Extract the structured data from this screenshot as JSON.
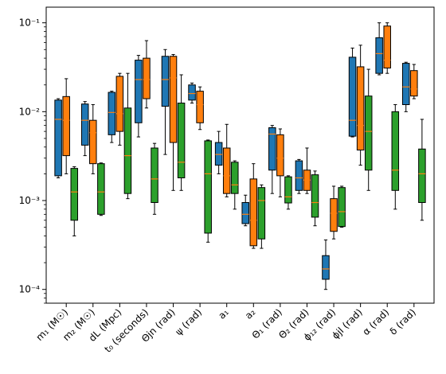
{
  "chart_data": {
    "type": "box",
    "title": "",
    "xlabel": "",
    "ylabel": "",
    "yscale": "log",
    "ylim": [
      7e-05,
      0.15
    ],
    "yticks": [
      {
        "value": 0.0001,
        "label": "10⁻⁴"
      },
      {
        "value": 0.001,
        "label": "10⁻³"
      },
      {
        "value": 0.01,
        "label": "10⁻²"
      },
      {
        "value": 0.1,
        "label": "10⁻¹"
      }
    ],
    "grid": false,
    "legend": "none",
    "categories": [
      "m₁ (M☉)",
      "m₂ (M☉)",
      "dL (Mpc)",
      "t₀ (seconds)",
      "Θjn (rad)",
      "ψ (rad)",
      "a₁",
      "a₂",
      "Θ₁ (rad)",
      "Θ₂ (rad)",
      "ϕ₁₂ (rad)",
      "ϕjl (rad)",
      "α (rad)",
      "δ (rad)"
    ],
    "series": [
      {
        "color": "#1f77b4",
        "boxes": [
          {
            "whislo": 0.0018,
            "q1": 0.0019,
            "med": 0.0082,
            "q3": 0.0135,
            "whishi": 0.014
          },
          {
            "whislo": 0.0032,
            "q1": 0.0042,
            "med": 0.008,
            "q3": 0.0122,
            "whishi": 0.013
          },
          {
            "whislo": 0.0045,
            "q1": 0.0055,
            "med": 0.0098,
            "q3": 0.0165,
            "whishi": 0.017
          },
          {
            "whislo": 0.0052,
            "q1": 0.0075,
            "med": 0.023,
            "q3": 0.038,
            "whishi": 0.043
          },
          {
            "whislo": 0.0033,
            "q1": 0.0115,
            "med": 0.023,
            "q3": 0.042,
            "whishi": 0.05
          },
          {
            "whislo": 0.0125,
            "q1": 0.0135,
            "med": 0.016,
            "q3": 0.02,
            "whishi": 0.021
          },
          {
            "whislo": 0.002,
            "q1": 0.0025,
            "med": 0.0033,
            "q3": 0.0045,
            "whishi": 0.006
          },
          {
            "whislo": 0.00052,
            "q1": 0.00055,
            "med": 0.0007,
            "q3": 0.00095,
            "whishi": 0.00115
          },
          {
            "whislo": 0.0012,
            "q1": 0.0022,
            "med": 0.0056,
            "q3": 0.0066,
            "whishi": 0.007
          },
          {
            "whislo": 0.0012,
            "q1": 0.0013,
            "med": 0.0018,
            "q3": 0.0028,
            "whishi": 0.0029
          },
          {
            "whislo": 0.0001,
            "q1": 0.00013,
            "med": 0.00017,
            "q3": 0.00024,
            "whishi": 0.00036
          },
          {
            "whislo": 0.0052,
            "q1": 0.0053,
            "med": 0.008,
            "q3": 0.041,
            "whishi": 0.052
          },
          {
            "whislo": 0.026,
            "q1": 0.027,
            "med": 0.045,
            "q3": 0.068,
            "whishi": 0.1
          },
          {
            "whislo": 0.01,
            "q1": 0.012,
            "med": 0.019,
            "q3": 0.035,
            "whishi": 0.036
          }
        ]
      },
      {
        "color": "#ff7f0e",
        "boxes": [
          {
            "whislo": 0.002,
            "q1": 0.0032,
            "med": 0.008,
            "q3": 0.0148,
            "whishi": 0.0235
          },
          {
            "whislo": 0.002,
            "q1": 0.0026,
            "med": 0.0058,
            "q3": 0.008,
            "whishi": 0.012
          },
          {
            "whislo": 0.0042,
            "q1": 0.006,
            "med": 0.0095,
            "q3": 0.025,
            "whishi": 0.027
          },
          {
            "whislo": 0.011,
            "q1": 0.014,
            "med": 0.023,
            "q3": 0.04,
            "whishi": 0.063
          },
          {
            "whislo": 0.0013,
            "q1": 0.0045,
            "med": 0.024,
            "q3": 0.042,
            "whishi": 0.044
          },
          {
            "whislo": 0.0063,
            "q1": 0.0075,
            "med": 0.012,
            "q3": 0.017,
            "whishi": 0.019
          },
          {
            "whislo": 0.0011,
            "q1": 0.0012,
            "med": 0.0019,
            "q3": 0.0039,
            "whishi": 0.0072
          },
          {
            "whislo": 0.00029,
            "q1": 0.00031,
            "med": 0.0006,
            "q3": 0.00175,
            "whishi": 0.0026
          },
          {
            "whislo": 0.0011,
            "q1": 0.0019,
            "med": 0.003,
            "q3": 0.0055,
            "whishi": 0.0064
          },
          {
            "whislo": 0.0012,
            "q1": 0.0013,
            "med": 0.0017,
            "q3": 0.0022,
            "whishi": 0.0039
          },
          {
            "whislo": 0.00037,
            "q1": 0.00045,
            "med": 0.00072,
            "q3": 0.00105,
            "whishi": 0.00145
          },
          {
            "whislo": 0.0025,
            "q1": 0.0037,
            "med": 0.007,
            "q3": 0.032,
            "whishi": 0.056
          },
          {
            "whislo": 0.027,
            "q1": 0.031,
            "med": 0.038,
            "q3": 0.092,
            "whishi": 0.1
          },
          {
            "whislo": 0.014,
            "q1": 0.015,
            "med": 0.018,
            "q3": 0.029,
            "whishi": 0.034
          }
        ]
      },
      {
        "color": "#2ca02c",
        "boxes": [
          {
            "whislo": 0.0004,
            "q1": 0.0006,
            "med": 0.00125,
            "q3": 0.0023,
            "whishi": 0.0024
          },
          {
            "whislo": 0.00068,
            "q1": 0.0007,
            "med": 0.00125,
            "q3": 0.0026,
            "whishi": 0.00265
          },
          {
            "whislo": 0.00105,
            "q1": 0.0012,
            "med": 0.0032,
            "q3": 0.011,
            "whishi": 0.027
          },
          {
            "whislo": 0.0007,
            "q1": 0.00095,
            "med": 0.00175,
            "q3": 0.0039,
            "whishi": 0.0044
          },
          {
            "whislo": 0.0013,
            "q1": 0.0018,
            "med": 0.0027,
            "q3": 0.0125,
            "whishi": 0.026
          },
          {
            "whislo": 0.00034,
            "q1": 0.00043,
            "med": 0.002,
            "q3": 0.0047,
            "whishi": 0.0048
          },
          {
            "whislo": 0.0008,
            "q1": 0.0012,
            "med": 0.0015,
            "q3": 0.0027,
            "whishi": 0.0028
          },
          {
            "whislo": 0.00029,
            "q1": 0.00037,
            "med": 0.001,
            "q3": 0.0014,
            "whishi": 0.0015
          },
          {
            "whislo": 0.0008,
            "q1": 0.00094,
            "med": 0.0011,
            "q3": 0.00185,
            "whishi": 0.0019
          },
          {
            "whislo": 0.00052,
            "q1": 0.00065,
            "med": 0.00095,
            "q3": 0.00195,
            "whishi": 0.00215
          },
          {
            "whislo": 0.0005,
            "q1": 0.00051,
            "med": 0.00075,
            "q3": 0.0014,
            "whishi": 0.00145
          },
          {
            "whislo": 0.0013,
            "q1": 0.0022,
            "med": 0.006,
            "q3": 0.015,
            "whishi": 0.03
          },
          {
            "whislo": 0.0008,
            "q1": 0.0013,
            "med": 0.0022,
            "q3": 0.01,
            "whishi": 0.012
          },
          {
            "whislo": 0.0006,
            "q1": 0.00095,
            "med": 0.002,
            "q3": 0.0038,
            "whishi": 0.0082
          }
        ]
      }
    ]
  }
}
